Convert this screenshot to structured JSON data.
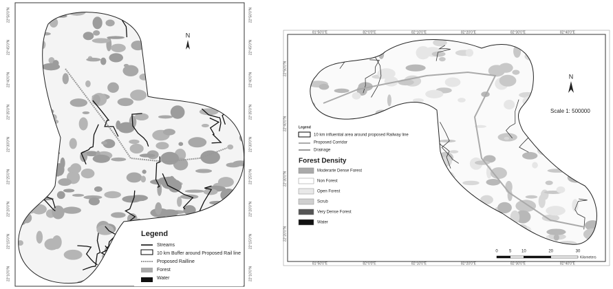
{
  "left_map": {
    "lat_labels": [
      "22°50'0\"N",
      "22°45'0\"N",
      "22°40'0\"N",
      "22°35'0\"N",
      "22°30'0\"N",
      "22°25'0\"N",
      "22°20'0\"N",
      "22°15'0\"N",
      "22°10'0\"N"
    ],
    "north": "N",
    "legend": {
      "title": "Legend",
      "items": [
        "Streams",
        "10 km Buffer around Proposed Rail line",
        "Proposed Railline",
        "Forest",
        "Water"
      ]
    }
  },
  "right_map": {
    "lon_labels": [
      "81°50'0\"E",
      "82°0'0\"E",
      "82°10'0\"E",
      "82°20'0\"E",
      "82°30'0\"E",
      "82°40'0\"E"
    ],
    "lat_labels": [
      "22°50'0\"N",
      "22°40'0\"N",
      "22°30'0\"N",
      "22°20'0\"N"
    ],
    "north": "N",
    "scale": "Scale 1: 500000",
    "legend": {
      "title": "Legend",
      "items": [
        "10 km influential area around proposed Railway line",
        "Proposed Corridor",
        "Drainage"
      ]
    },
    "forest_density": {
      "title": "Forest Density",
      "classes": [
        "Moderarte Dense Forest",
        "Non Forest",
        "Open Forest",
        "Scrub",
        "Very Dense Forest",
        "Water"
      ]
    },
    "scale_bar": {
      "ticks": [
        0,
        5,
        10,
        20,
        30
      ],
      "unit": "Kilometers"
    }
  }
}
